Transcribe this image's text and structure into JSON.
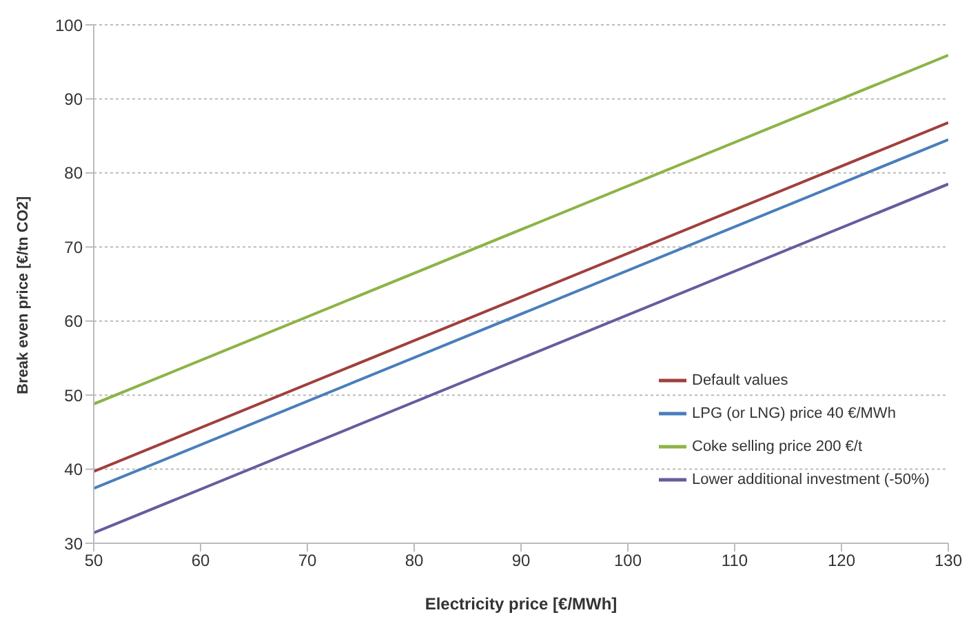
{
  "chart_data": {
    "type": "line",
    "xlabel": "Electricity price [€/MWh]",
    "ylabel": "Break even price [€/tn CO2]",
    "x": [
      50,
      130
    ],
    "series": [
      {
        "name": "Default values",
        "color": "#a0403c",
        "values": [
          39.7,
          86.8
        ]
      },
      {
        "name": "LPG (or LNG) price 40 €/MWh",
        "color": "#4a7ebb",
        "values": [
          37.4,
          84.5
        ]
      },
      {
        "name": "Coke selling price 200 €/t",
        "color": "#8db347",
        "values": [
          48.8,
          95.9
        ]
      },
      {
        "name": "Lower additional investment (-50%)",
        "color": "#6a5a9e",
        "values": [
          31.4,
          78.5
        ]
      }
    ],
    "xlim": [
      50,
      130
    ],
    "xticks": [
      50,
      60,
      70,
      80,
      90,
      100,
      110,
      120,
      130
    ],
    "ylim": [
      30,
      100
    ],
    "yticks": [
      30,
      40,
      50,
      60,
      70,
      80,
      90,
      100
    ],
    "grid": "y",
    "legend": "right",
    "marker": "none",
    "line_style": "solid"
  }
}
